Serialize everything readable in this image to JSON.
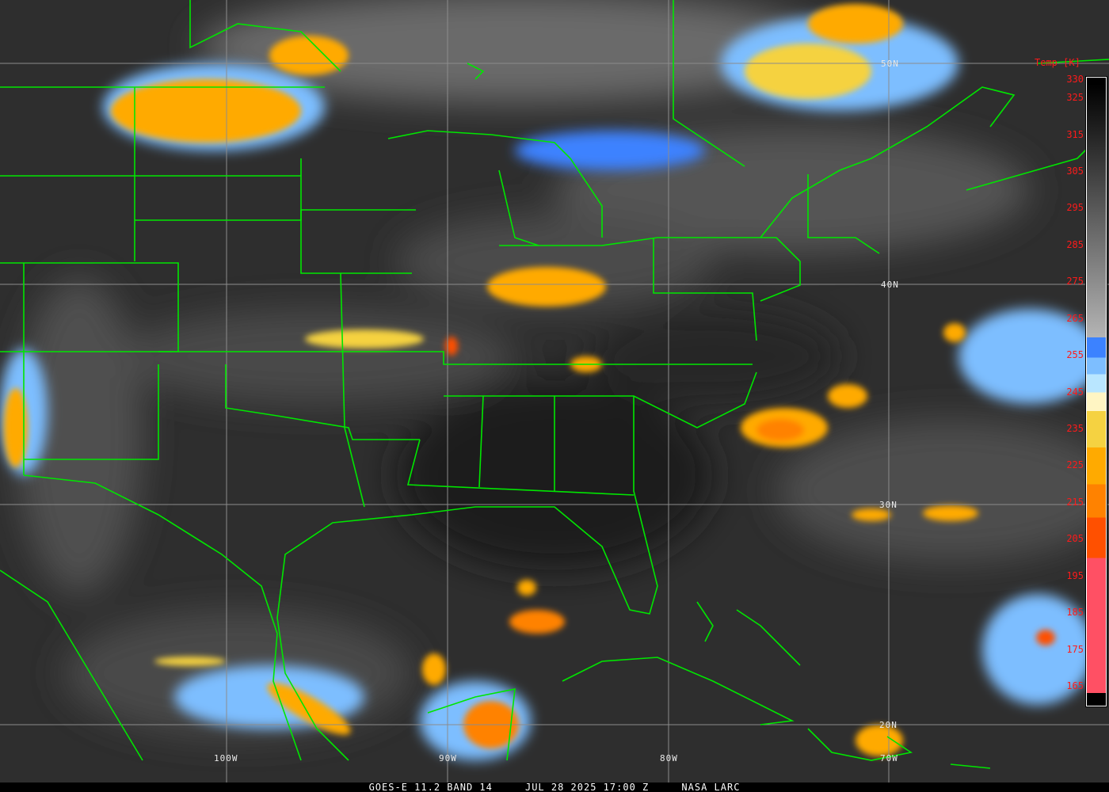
{
  "caption": {
    "satellite": "GOES-E 11.2 BAND 14",
    "datetime": "JUL 28 2025 17:00 Z",
    "source": "NASA LARC"
  },
  "legend": {
    "title": "Temp [K]",
    "ticks": [
      "330",
      "325",
      "315",
      "305",
      "295",
      "285",
      "275",
      "265",
      "255",
      "245",
      "235",
      "225",
      "215",
      "205",
      "195",
      "185",
      "175",
      "165"
    ],
    "tick_values": [
      330,
      325,
      315,
      305,
      295,
      285,
      275,
      265,
      255,
      245,
      235,
      225,
      215,
      205,
      195,
      185,
      175,
      165
    ],
    "colors": {
      "warm_top": "#000000",
      "cold_gray": "#b4b4b4",
      "blue": "#3c82ff",
      "light_blue": "#7dbeff",
      "pale_cyan": "#b9e6ff",
      "pale_yellow": "#fff5c3",
      "yellow": "#f5d241",
      "gold": "#ffaa00",
      "orange": "#ff8200",
      "red_orange": "#ff5000",
      "pink": "#ff5064",
      "bottom": "#000000"
    }
  },
  "grid": {
    "latitudes": [
      "50N",
      "40N",
      "30N",
      "20N"
    ],
    "longitudes": [
      "100W",
      "90W",
      "80W",
      "70W"
    ]
  },
  "colors": {
    "boundaries": "#00e600",
    "gridlines": "#8c8c8c",
    "tick_text": "#ff1a1a"
  }
}
